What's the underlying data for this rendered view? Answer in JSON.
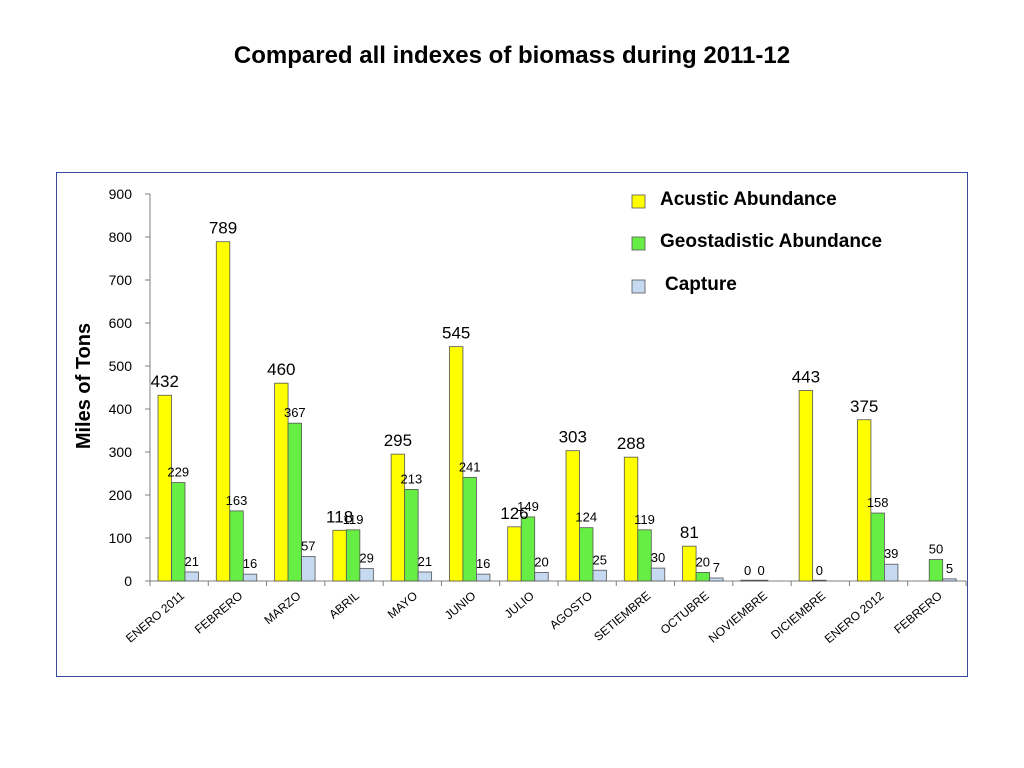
{
  "chart_data": {
    "type": "bar",
    "title": "Compared all indexes of biomass during 2011-12",
    "ylabel": "Miles of Tons",
    "xlabel": "",
    "ylim": [
      0,
      900
    ],
    "yticks": [
      0,
      100,
      200,
      300,
      400,
      500,
      600,
      700,
      800,
      900
    ],
    "grid": false,
    "legend": "top-right",
    "categories": [
      "ENERO 2011",
      "FEBRERO",
      "MARZO",
      "ABRIL",
      "MAYO",
      "JUNIO",
      "JULIO",
      "AGOSTO",
      "SETIEMBRE",
      "OCTUBRE",
      "NOVIEMBRE",
      "DICIEMBRE",
      "ENERO 2012",
      "FEBRERO"
    ],
    "series": [
      {
        "name": "Acustic Abundance",
        "color": "#ffff00",
        "values": [
          432,
          789,
          460,
          118,
          295,
          545,
          126,
          303,
          288,
          81,
          0,
          443,
          375,
          null
        ]
      },
      {
        "name": "Geostadistic Abundance",
        "color": "#66ee44",
        "values": [
          229,
          163,
          367,
          119,
          213,
          241,
          149,
          124,
          119,
          20,
          0,
          0,
          158,
          50
        ]
      },
      {
        "name": "Capture",
        "color": "#c5d9f1",
        "values": [
          21,
          16,
          57,
          29,
          21,
          16,
          20,
          25,
          30,
          7,
          null,
          null,
          39,
          5
        ]
      }
    ]
  }
}
